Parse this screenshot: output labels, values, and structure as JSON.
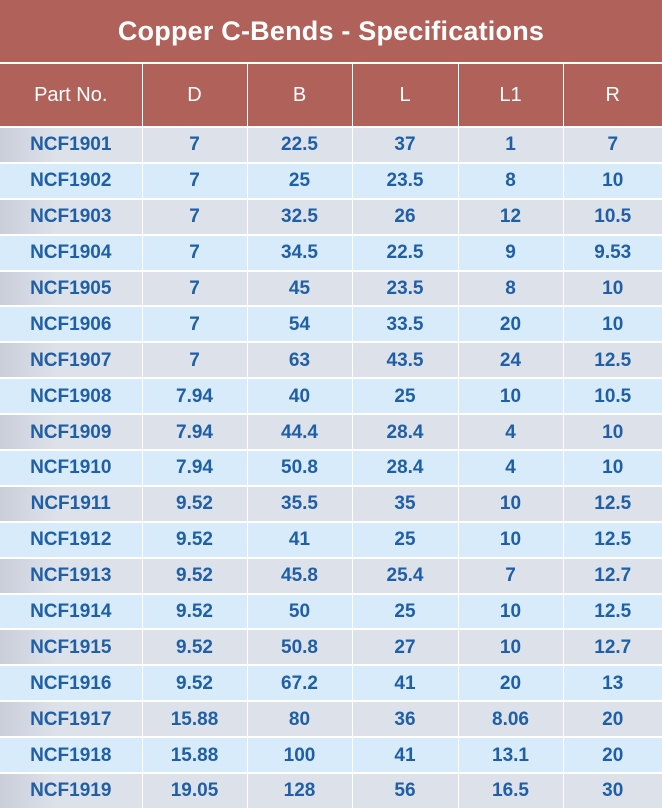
{
  "title": "Copper C-Bends - Specifications",
  "columns": [
    "Part No.",
    "D",
    "B",
    "L",
    "L1",
    "R"
  ],
  "rows": [
    [
      "NCF1901",
      "7",
      "22.5",
      "37",
      "1",
      "7"
    ],
    [
      "NCF1902",
      "7",
      "25",
      "23.5",
      "8",
      "10"
    ],
    [
      "NCF1903",
      "7",
      "32.5",
      "26",
      "12",
      "10.5"
    ],
    [
      "NCF1904",
      "7",
      "34.5",
      "22.5",
      "9",
      "9.53"
    ],
    [
      "NCF1905",
      "7",
      "45",
      "23.5",
      "8",
      "10"
    ],
    [
      "NCF1906",
      "7",
      "54",
      "33.5",
      "20",
      "10"
    ],
    [
      "NCF1907",
      "7",
      "63",
      "43.5",
      "24",
      "12.5"
    ],
    [
      "NCF1908",
      "7.94",
      "40",
      "25",
      "10",
      "10.5"
    ],
    [
      "NCF1909",
      "7.94",
      "44.4",
      "28.4",
      "4",
      "10"
    ],
    [
      "NCF1910",
      "7.94",
      "50.8",
      "28.4",
      "4",
      "10"
    ],
    [
      "NCF1911",
      "9.52",
      "35.5",
      "35",
      "10",
      "12.5"
    ],
    [
      "NCF1912",
      "9.52",
      "41",
      "25",
      "10",
      "12.5"
    ],
    [
      "NCF1913",
      "9.52",
      "45.8",
      "25.4",
      "7",
      "12.7"
    ],
    [
      "NCF1914",
      "9.52",
      "50",
      "25",
      "10",
      "12.5"
    ],
    [
      "NCF1915",
      "9.52",
      "50.8",
      "27",
      "10",
      "12.7"
    ],
    [
      "NCF1916",
      "9.52",
      "67.2",
      "41",
      "20",
      "13"
    ],
    [
      "NCF1917",
      "15.88",
      "80",
      "36",
      "8.06",
      "20"
    ],
    [
      "NCF1918",
      "15.88",
      "100",
      "41",
      "13.1",
      "20"
    ],
    [
      "NCF1919",
      "19.05",
      "128",
      "56",
      "16.5",
      "30"
    ]
  ],
  "colors": {
    "header_bg": "#b0625a",
    "header_text": "#ffffff",
    "cell_text": "#1f5fa6",
    "row_odd_bg": "#dde1ea",
    "row_even_bg": "#d8ebfa"
  }
}
